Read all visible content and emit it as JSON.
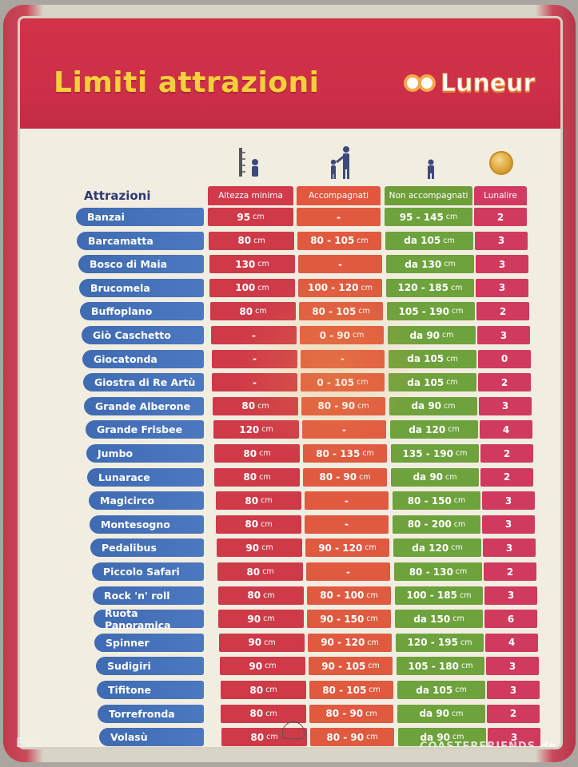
{
  "title": "Limiti attrazioni",
  "brand": "Luneur",
  "columns": {
    "name": "Attrazioni",
    "min_height": "Altezza minima",
    "accompanied": "Accompagnati",
    "unaccompanied": "Non accompagnati",
    "lunalire": "Lunalire"
  },
  "unit": "cm",
  "rows": [
    {
      "name": "Banzai",
      "min": "95",
      "acc": "-",
      "non": "95 - 145",
      "lun": "2"
    },
    {
      "name": "Barcamatta",
      "min": "80",
      "acc": "80 - 105",
      "non": "da 105",
      "lun": "3"
    },
    {
      "name": "Bosco di Maia",
      "min": "130",
      "acc": "-",
      "non": "da 130",
      "lun": "3"
    },
    {
      "name": "Brucomela",
      "min": "100",
      "acc": "100 - 120",
      "non": "120 - 185",
      "lun": "3"
    },
    {
      "name": "Buffoplano",
      "min": "80",
      "acc": "80 - 105",
      "non": "105 - 190",
      "lun": "2"
    },
    {
      "name": "Giò Caschetto",
      "min": "-",
      "acc": "0 - 90",
      "non": "da 90",
      "lun": "3"
    },
    {
      "name": "Giocatonda",
      "min": "-",
      "acc": "-",
      "non": "da 105",
      "lun": "0"
    },
    {
      "name": "Giostra di Re Artù",
      "min": "-",
      "acc": "0 - 105",
      "non": "da 105",
      "lun": "2"
    },
    {
      "name": "Grande Alberone",
      "min": "80",
      "acc": "80 - 90",
      "non": "da 90",
      "lun": "3"
    },
    {
      "name": "Grande Frisbee",
      "min": "120",
      "acc": "-",
      "non": "da 120",
      "lun": "4"
    },
    {
      "name": "Jumbo",
      "min": "80",
      "acc": "80 - 135",
      "non": "135 - 190",
      "lun": "2"
    },
    {
      "name": "Lunarace",
      "min": "80",
      "acc": "80 - 90",
      "non": "da 90",
      "lun": "2"
    },
    {
      "name": "Magicirco",
      "min": "80",
      "acc": "-",
      "non": "80 - 150",
      "lun": "3"
    },
    {
      "name": "Montesogno",
      "min": "80",
      "acc": "-",
      "non": "80 - 200",
      "lun": "3"
    },
    {
      "name": "Pedalibus",
      "min": "90",
      "acc": "90 - 120",
      "non": "da 120",
      "lun": "3"
    },
    {
      "name": "Piccolo Safari",
      "min": "80",
      "acc": "-",
      "non": "80 - 130",
      "lun": "2"
    },
    {
      "name": "Rock 'n' roll",
      "min": "80",
      "acc": "80 - 100",
      "non": "100 - 185",
      "lun": "3"
    },
    {
      "name": "Ruota Panoramica",
      "min": "90",
      "acc": "90 - 150",
      "non": "da 150",
      "lun": "6"
    },
    {
      "name": "Spinner",
      "min": "90",
      "acc": "90 - 120",
      "non": "120 - 195",
      "lun": "4"
    },
    {
      "name": "Sudigiri",
      "min": "90",
      "acc": "90 - 105",
      "non": "105 - 180",
      "lun": "3"
    },
    {
      "name": "Tifitone",
      "min": "80",
      "acc": "80 - 105",
      "non": "da 105",
      "lun": "3"
    },
    {
      "name": "Torrefronda",
      "min": "80",
      "acc": "80 - 90",
      "non": "da 90",
      "lun": "2"
    },
    {
      "name": "Volasù",
      "min": "80",
      "acc": "80 - 90",
      "non": "da 90",
      "lun": "3"
    }
  ],
  "watermark": "COASTERFRIENDS.de",
  "credit": "Evii",
  "colors": {
    "banner": "#cc2f48",
    "title": "#f6cf3c",
    "name_cell": "#4472b8",
    "min_height": "#cf3a48",
    "accompanied": "#e05a40",
    "unaccompanied": "#6ea23c",
    "lunalire": "#cf3a5e"
  }
}
